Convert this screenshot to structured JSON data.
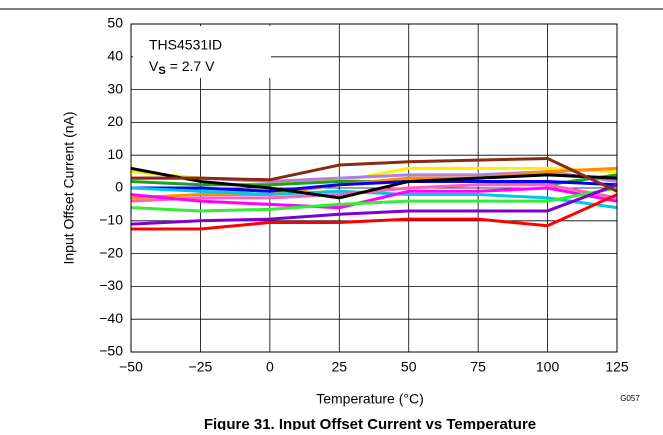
{
  "chart_data": {
    "type": "line",
    "caption": "Figure 31. Input Offset Current vs Temperature",
    "footnote": "G057",
    "x_label": "Temperature (°C)",
    "y_label": "Input Offset Current (nA)",
    "annotation": {
      "device": "THS4531ID",
      "symbol": "V",
      "subscript": "S",
      "condition": "= 2.7 V"
    },
    "grid": true,
    "xlim": [
      -50,
      125
    ],
    "ylim": [
      -50,
      50
    ],
    "xticks": [
      {
        "value": -50,
        "label": "−50"
      },
      {
        "value": -25,
        "label": "−25"
      },
      0,
      25,
      50,
      75,
      100,
      125
    ],
    "yticks": [
      {
        "value": -50,
        "label": "−50"
      },
      {
        "value": -40,
        "label": "−40"
      },
      {
        "value": -30,
        "label": "−30"
      },
      {
        "value": -20,
        "label": "−20"
      },
      {
        "value": -10,
        "label": "−10"
      },
      0,
      10,
      20,
      30,
      40,
      50
    ],
    "x": [
      -50,
      -25,
      0,
      25,
      50,
      75,
      100,
      125
    ],
    "series": [
      {
        "color": "#ffee00",
        "values": [
          5,
          3,
          2,
          2,
          6,
          6,
          6,
          5
        ]
      },
      {
        "color": "#1fa01f",
        "values": [
          2,
          1,
          1,
          2,
          2,
          2,
          1,
          4
        ]
      },
      {
        "color": "#b080e0",
        "values": [
          3,
          3,
          2,
          3,
          4,
          4,
          5,
          2
        ]
      },
      {
        "color": "#ff8c00",
        "values": [
          -3,
          -2,
          -2,
          1,
          3,
          3,
          5,
          6
        ]
      },
      {
        "color": "#0000ff",
        "values": [
          0,
          0,
          -1,
          1,
          2,
          2,
          2,
          1
        ]
      },
      {
        "color": "#00c8e0",
        "values": [
          0,
          -1,
          -2,
          -1,
          -2,
          -2,
          -3,
          -6
        ]
      },
      {
        "color": "#ff60c0",
        "values": [
          -4,
          -3,
          -3,
          -2,
          0,
          1,
          1,
          -3
        ]
      },
      {
        "color": "#ff00ff",
        "values": [
          -2,
          -4,
          -5,
          -6,
          -1,
          -1,
          0,
          -4
        ]
      },
      {
        "color": "#33ee33",
        "values": [
          -6,
          -7,
          -6.5,
          -5,
          -4,
          -4,
          -4,
          0
        ]
      },
      {
        "color": "#8000d0",
        "values": [
          -11,
          -10,
          -9.5,
          -8,
          -7,
          -7,
          -7,
          1
        ]
      },
      {
        "color": "#ff0000",
        "values": [
          -12.5,
          -12.5,
          -10.5,
          -10.5,
          -9.5,
          -9.5,
          -11.5,
          -2
        ]
      },
      {
        "color": "#000000",
        "values": [
          6,
          2,
          0,
          -3,
          2,
          3,
          4,
          3
        ]
      },
      {
        "color": "#8b2a10",
        "values": [
          3,
          3,
          2.5,
          7,
          8,
          8.5,
          9,
          -1
        ]
      }
    ]
  }
}
